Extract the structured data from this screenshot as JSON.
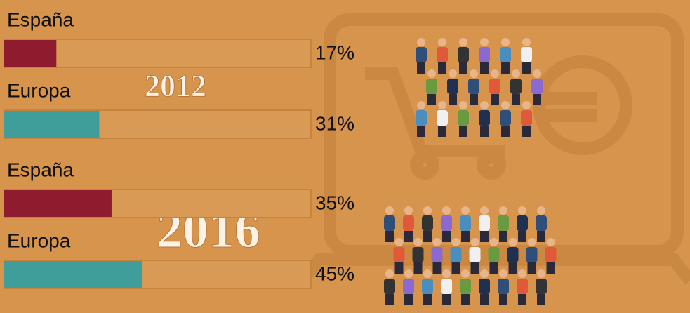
{
  "chart_data": [
    {
      "type": "bar",
      "orientation": "horizontal",
      "title": "2012",
      "categories": [
        "España",
        "Europa"
      ],
      "values": [
        17,
        31
      ],
      "value_labels": [
        "17%",
        "31%"
      ],
      "colors": [
        "#8e1c2e",
        "#3f9e9a"
      ],
      "xlim": [
        0,
        100
      ]
    },
    {
      "type": "bar",
      "orientation": "horizontal",
      "title": "2016",
      "categories": [
        "España",
        "Europa"
      ],
      "values": [
        35,
        45
      ],
      "value_labels": [
        "35%",
        "45%"
      ],
      "colors": [
        "#8e1c2e",
        "#3f9e9a"
      ],
      "xlim": [
        0,
        100
      ]
    }
  ]
}
